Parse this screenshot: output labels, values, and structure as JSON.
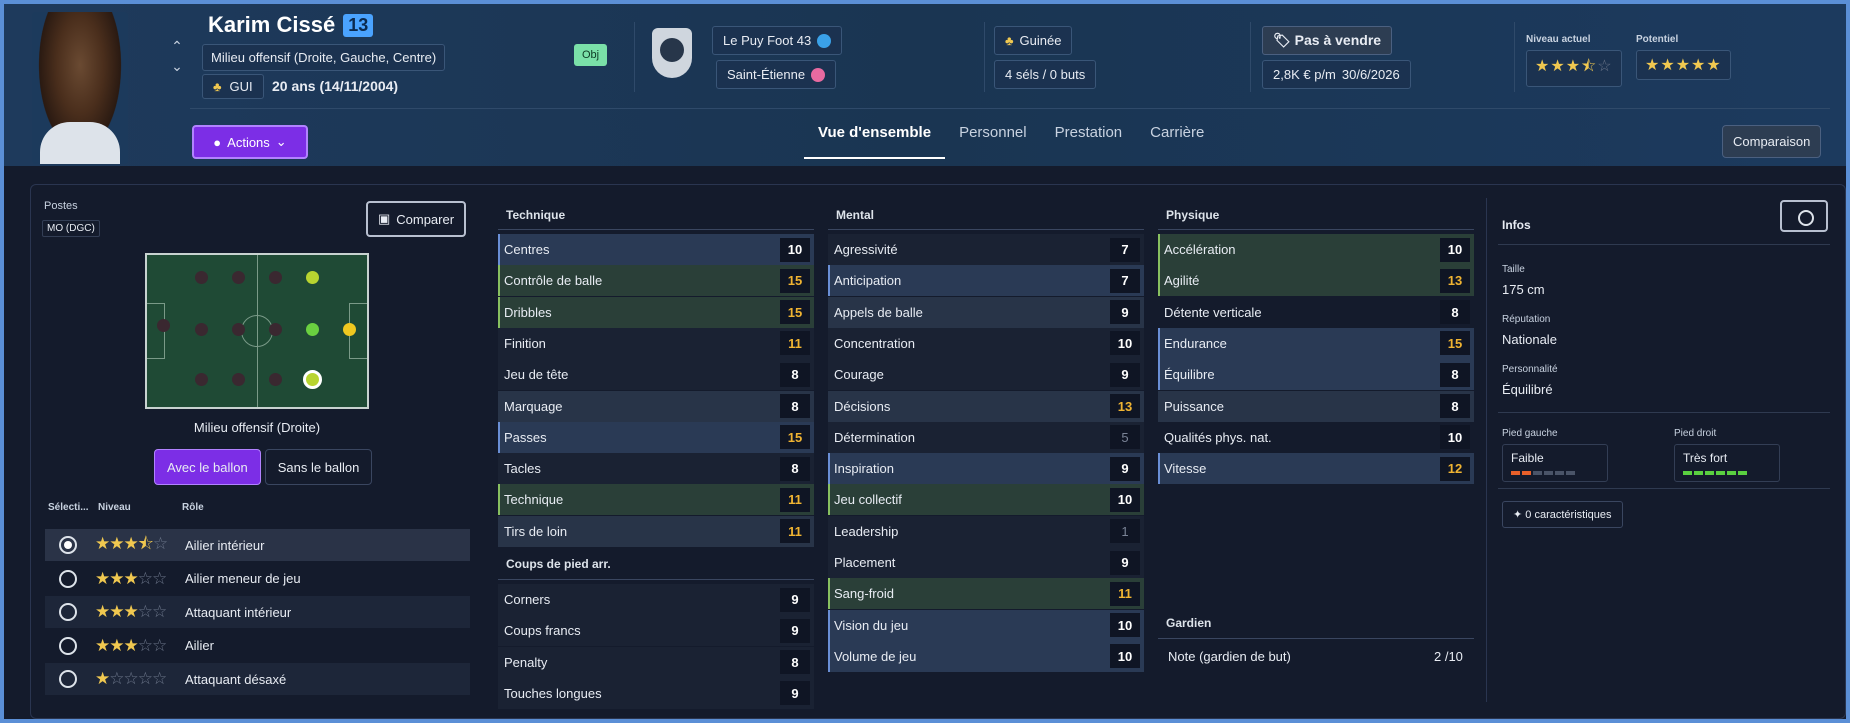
{
  "player": {
    "name": "Karim Cissé",
    "number": "13",
    "position": "Milieu offensif (Droite, Gauche, Centre)",
    "nationality_code": "GUI",
    "age": "20 ans (14/11/2004)",
    "obj": "Obj"
  },
  "club": {
    "name": "Le Puy Foot 43",
    "loan": "Saint-Étienne"
  },
  "country": {
    "name": "Guinée",
    "caps": "4 séls / 0 buts"
  },
  "contract": {
    "status": "Pas à vendre",
    "wage": "2,8K € p/m",
    "expiry": "30/6/2026"
  },
  "ability": {
    "current_label": "Niveau actuel",
    "current_stars": 3.5,
    "potential_label": "Potentiel",
    "potential_stars": 5
  },
  "actions_label": "Actions",
  "tabs": [
    {
      "label": "Vue d'ensemble"
    },
    {
      "label": "Personnel"
    },
    {
      "label": "Prestation"
    },
    {
      "label": "Carrière"
    }
  ],
  "compare_label": "Comparaison",
  "left": {
    "postes_label": "Postes",
    "postes_value": "MO (DGC)",
    "comparer": "Comparer",
    "position_name": "Milieu offensif (Droite)",
    "with_ball": "Avec le ballon",
    "without_ball": "Sans le ballon",
    "headers": {
      "select": "Sélecti...",
      "level": "Niveau",
      "role": "Rôle"
    },
    "roles": [
      {
        "name": "Ailier intérieur",
        "stars": 3.5,
        "selected": true
      },
      {
        "name": "Ailier meneur de jeu",
        "stars": 3
      },
      {
        "name": "Attaquant intérieur",
        "stars": 3
      },
      {
        "name": "Ailier",
        "stars": 3
      },
      {
        "name": "Attaquant désaxé",
        "stars": 1
      }
    ]
  },
  "technique": {
    "title": "Technique",
    "attrs": [
      {
        "n": "Centres",
        "v": "10"
      },
      {
        "n": "Contrôle de balle",
        "v": "15"
      },
      {
        "n": "Dribbles",
        "v": "15"
      },
      {
        "n": "Finition",
        "v": "11"
      },
      {
        "n": "Jeu de tête",
        "v": "8"
      },
      {
        "n": "Marquage",
        "v": "8"
      },
      {
        "n": "Passes",
        "v": "15"
      },
      {
        "n": "Tacles",
        "v": "8"
      },
      {
        "n": "Technique",
        "v": "11"
      },
      {
        "n": "Tirs de loin",
        "v": "11"
      }
    ]
  },
  "setpieces": {
    "title": "Coups de pied arr.",
    "attrs": [
      {
        "n": "Corners",
        "v": "9"
      },
      {
        "n": "Coups francs",
        "v": "9"
      },
      {
        "n": "Penalty",
        "v": "8"
      },
      {
        "n": "Touches longues",
        "v": "9"
      }
    ]
  },
  "mental": {
    "title": "Mental",
    "attrs": [
      {
        "n": "Agressivité",
        "v": "7"
      },
      {
        "n": "Anticipation",
        "v": "7"
      },
      {
        "n": "Appels de balle",
        "v": "9"
      },
      {
        "n": "Concentration",
        "v": "10"
      },
      {
        "n": "Courage",
        "v": "9"
      },
      {
        "n": "Décisions",
        "v": "13"
      },
      {
        "n": "Détermination",
        "v": "5"
      },
      {
        "n": "Inspiration",
        "v": "9"
      },
      {
        "n": "Jeu collectif",
        "v": "10"
      },
      {
        "n": "Leadership",
        "v": "1"
      },
      {
        "n": "Placement",
        "v": "9"
      },
      {
        "n": "Sang-froid",
        "v": "11"
      },
      {
        "n": "Vision du jeu",
        "v": "10"
      },
      {
        "n": "Volume de jeu",
        "v": "10"
      }
    ]
  },
  "physique": {
    "title": "Physique",
    "attrs": [
      {
        "n": "Accélération",
        "v": "10"
      },
      {
        "n": "Agilité",
        "v": "13"
      },
      {
        "n": "Détente verticale",
        "v": "8"
      },
      {
        "n": "Endurance",
        "v": "15"
      },
      {
        "n": "Équilibre",
        "v": "8"
      },
      {
        "n": "Puissance",
        "v": "8"
      },
      {
        "n": "Qualités phys. nat.",
        "v": "10"
      },
      {
        "n": "Vitesse",
        "v": "12"
      }
    ]
  },
  "gardien": {
    "title": "Gardien",
    "label": "Note (gardien de but)",
    "value": "2 /10"
  },
  "infos": {
    "title": "Infos",
    "taille_l": "Taille",
    "taille": "175 cm",
    "rep_l": "Réputation",
    "rep": "Nationale",
    "pers_l": "Personnalité",
    "pers": "Équilibré",
    "pg_l": "Pied gauche",
    "pg": "Faible",
    "pd_l": "Pied droit",
    "pd": "Très fort",
    "chars": "0 caractéristiques"
  },
  "colors": {
    "accent": "#7c2ee6",
    "highlight": "#f0b432"
  }
}
